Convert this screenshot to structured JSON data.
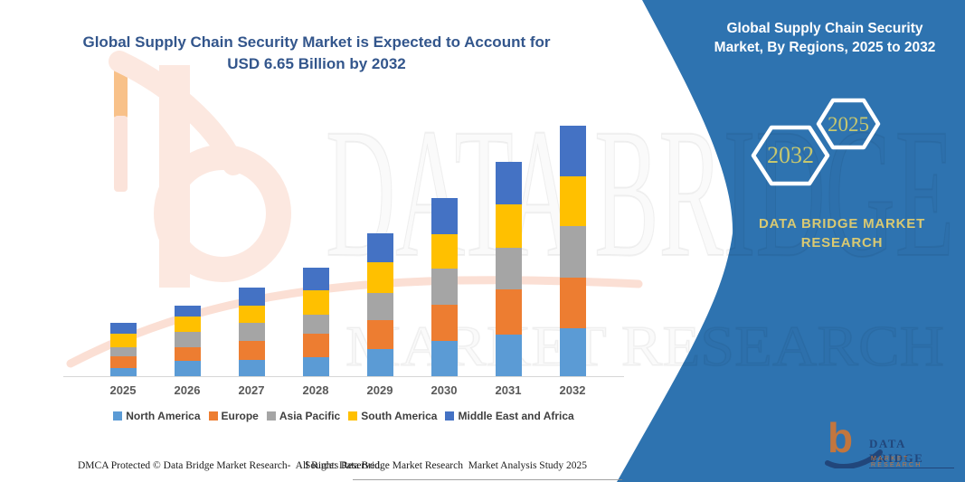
{
  "main_title_lines": [
    "Global Supply Chain Security Market is Expected to Account for",
    "USD 6.65 Billion by 2032"
  ],
  "panel": {
    "title_lines": [
      "Global Supply Chain Security",
      "Market, By Regions, 2025 to 2032"
    ],
    "badge_start_year": "2025",
    "badge_end_year": "2032",
    "brand_lines": [
      "DATA BRIDGE MARKET",
      "RESEARCH"
    ],
    "logo": {
      "glyph": "b",
      "name": "DATA BRIDGE",
      "tagline": "MARKET RESEARCH"
    },
    "bg_color": "#2e73b0",
    "brand_text_color": "#d9c972",
    "badge_text_color": "#c6c76f"
  },
  "chart_data": {
    "type": "bar",
    "stacked": true,
    "title": "Global Supply Chain Security Market, By Regions, 2025 to 2032",
    "unit": "USD Billion (estimated from bar heights; total 6.65 in 2032)",
    "categories": [
      "2025",
      "2026",
      "2027",
      "2028",
      "2029",
      "2030",
      "2031",
      "2032"
    ],
    "series": [
      {
        "name": "North America",
        "color": "#5B9BD5",
        "values": [
          0.22,
          0.42,
          0.44,
          0.5,
          0.72,
          0.93,
          1.1,
          1.27
        ]
      },
      {
        "name": "Europe",
        "color": "#ED7D31",
        "values": [
          0.3,
          0.34,
          0.5,
          0.64,
          0.78,
          0.96,
          1.2,
          1.34
        ]
      },
      {
        "name": "Asia Pacific",
        "color": "#A5A5A5",
        "values": [
          0.26,
          0.41,
          0.48,
          0.5,
          0.7,
          0.96,
          1.12,
          1.38
        ]
      },
      {
        "name": "South America",
        "color": "#FFC000",
        "values": [
          0.34,
          0.42,
          0.46,
          0.65,
          0.82,
          0.91,
          1.14,
          1.32
        ]
      },
      {
        "name": "Middle East and Africa",
        "color": "#4472C4",
        "values": [
          0.29,
          0.29,
          0.48,
          0.58,
          0.77,
          0.98,
          1.12,
          1.34
        ]
      }
    ],
    "totals_usd_billion": [
      1.41,
      1.88,
      2.36,
      2.87,
      3.79,
      4.74,
      5.68,
      6.65
    ],
    "ylim": [
      0,
      7
    ],
    "gridlines": false,
    "legend_position": "bottom"
  },
  "watermark": {
    "big_text": "DATA BRIDGE",
    "small_text": "MARKET RESEARCH"
  },
  "footer": {
    "left": "DMCA Protected © Data Bridge Market Research-  All Rights Reserved.",
    "source": "Source: Data Bridge Market Research  Market Analysis Study 2025"
  }
}
